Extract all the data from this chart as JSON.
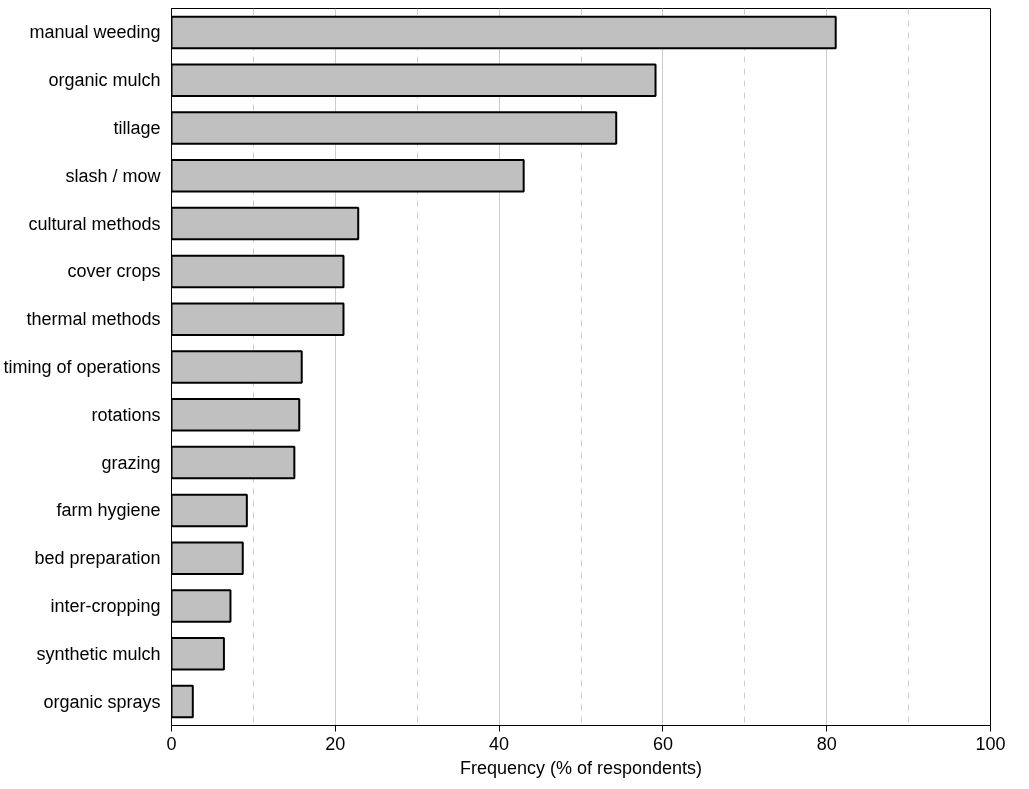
{
  "chart_data": {
    "type": "bar",
    "orientation": "horizontal",
    "xlabel": "Frequency (% of respondents)",
    "categories": [
      "manual weeding",
      "organic mulch",
      "tillage",
      "slash / mow",
      "cultural methods",
      "cover crops",
      "thermal methods",
      "timing of operations",
      "rotations",
      "grazing",
      "farm hygiene",
      "bed preparation",
      "inter-cropping",
      "synthetic mulch",
      "organic sprays"
    ],
    "values": [
      81.1,
      59.1,
      54.3,
      43.0,
      22.8,
      21.0,
      21.0,
      15.9,
      15.6,
      15.0,
      9.2,
      8.7,
      7.2,
      6.4,
      2.6
    ],
    "color": "#c0c0c0",
    "xlim": [
      0,
      100
    ],
    "xticks": [
      0,
      20,
      40,
      60,
      80,
      100
    ],
    "grid": "x"
  }
}
